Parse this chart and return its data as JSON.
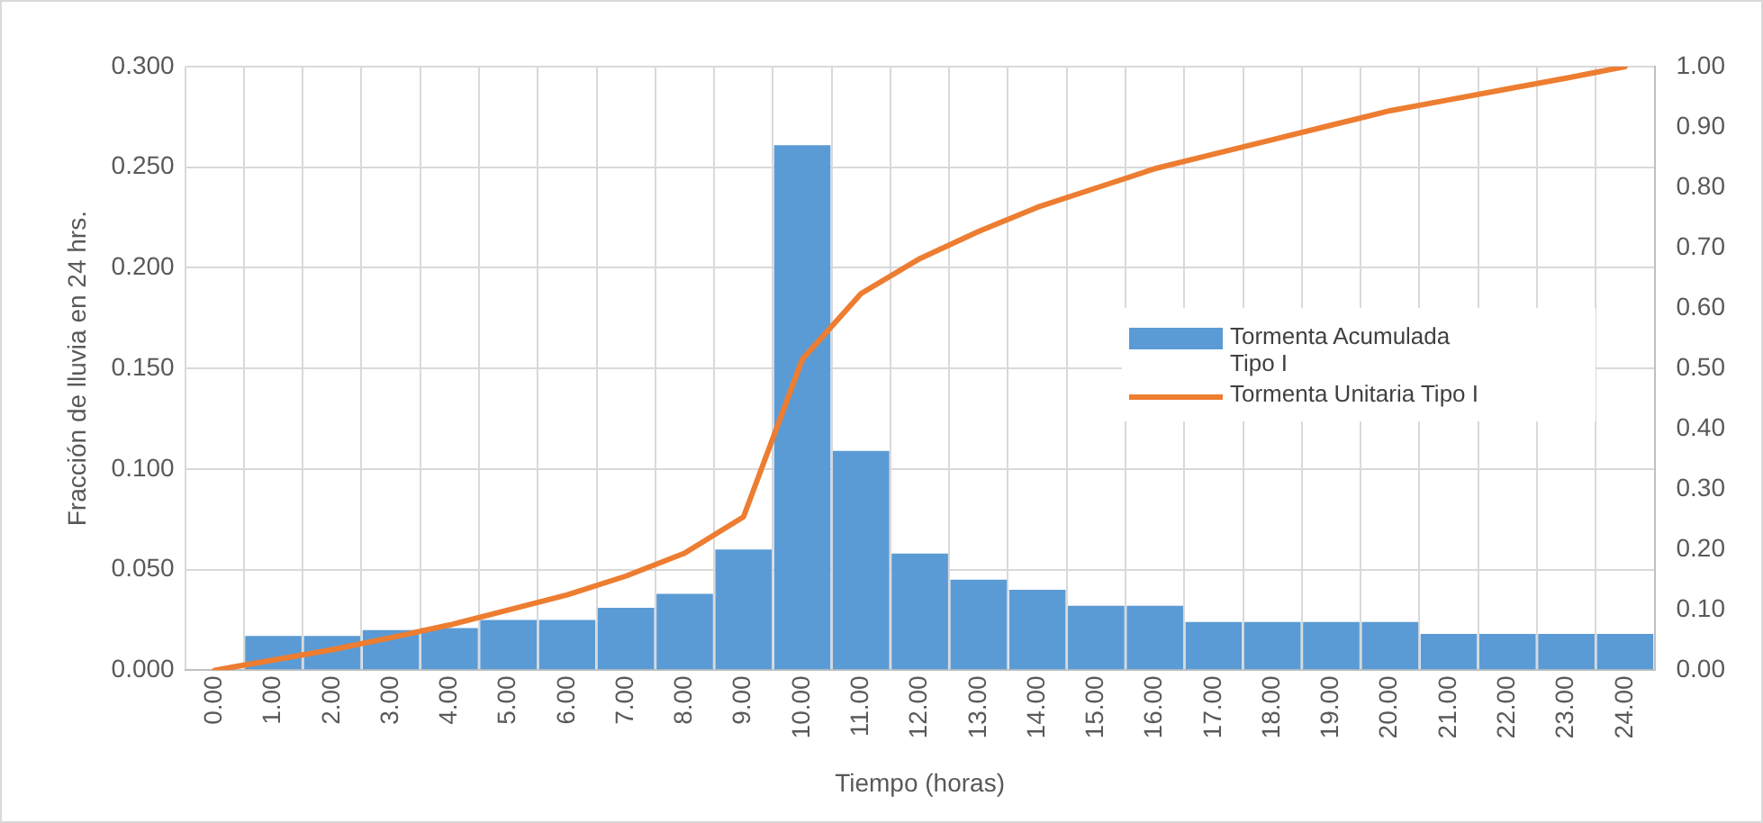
{
  "chart_data": {
    "type": "bar",
    "xlabel": "Tiempo (horas)",
    "ylabel": "Fracción de lluvia en 24 hrs.",
    "categories": [
      "0.00",
      "1.00",
      "2.00",
      "3.00",
      "4.00",
      "5.00",
      "6.00",
      "7.00",
      "8.00",
      "9.00",
      "10.00",
      "11.00",
      "12.00",
      "13.00",
      "14.00",
      "15.00",
      "16.00",
      "17.00",
      "18.00",
      "19.00",
      "20.00",
      "21.00",
      "22.00",
      "23.00",
      "24.00"
    ],
    "series": [
      {
        "name": "Tormenta Acumulada Tipo I",
        "color": "#5b9bd5",
        "values": [
          null,
          0.017,
          0.017,
          0.02,
          0.021,
          0.025,
          0.025,
          0.031,
          0.038,
          0.06,
          0.261,
          0.109,
          0.058,
          0.045,
          0.04,
          0.032,
          0.032,
          0.024,
          0.024,
          0.024,
          0.024,
          0.018,
          0.018,
          0.018,
          0.018
        ]
      },
      {
        "name": "Tormenta Unitaria Tipo I",
        "type": "line",
        "axis": "y2",
        "color": "#ed7d31",
        "values": [
          0,
          0.017,
          0.034,
          0.054,
          0.075,
          0.1,
          0.125,
          0.156,
          0.194,
          0.254,
          0.515,
          0.624,
          0.682,
          0.727,
          0.767,
          0.799,
          0.831,
          0.855,
          0.879,
          0.903,
          0.927,
          0.945,
          0.963,
          0.981,
          1.0
        ]
      }
    ],
    "ylim": [
      0,
      0.3
    ],
    "yticks": [
      {
        "value": 0,
        "label": "0.000"
      },
      {
        "value": 0.05,
        "label": "0.050"
      },
      {
        "value": 0.1,
        "label": "0.100"
      },
      {
        "value": 0.15,
        "label": "0.150"
      },
      {
        "value": 0.2,
        "label": "0.200"
      },
      {
        "value": 0.25,
        "label": "0.250"
      },
      {
        "value": 0.3,
        "label": "0.300"
      }
    ],
    "y2lim": [
      0,
      1
    ],
    "y2ticks": [
      {
        "value": 0,
        "label": "0.00"
      },
      {
        "value": 0.1,
        "label": "0.10"
      },
      {
        "value": 0.2,
        "label": "0.20"
      },
      {
        "value": 0.3,
        "label": "0.30"
      },
      {
        "value": 0.4,
        "label": "0.40"
      },
      {
        "value": 0.5,
        "label": "0.50"
      },
      {
        "value": 0.6,
        "label": "0.60"
      },
      {
        "value": 0.7,
        "label": "0.70"
      },
      {
        "value": 0.8,
        "label": "0.80"
      },
      {
        "value": 0.9,
        "label": "0.90"
      },
      {
        "value": 1,
        "label": "1.00"
      }
    ],
    "grid": true,
    "legend": "right",
    "marker": "none",
    "line_style": "solid"
  }
}
